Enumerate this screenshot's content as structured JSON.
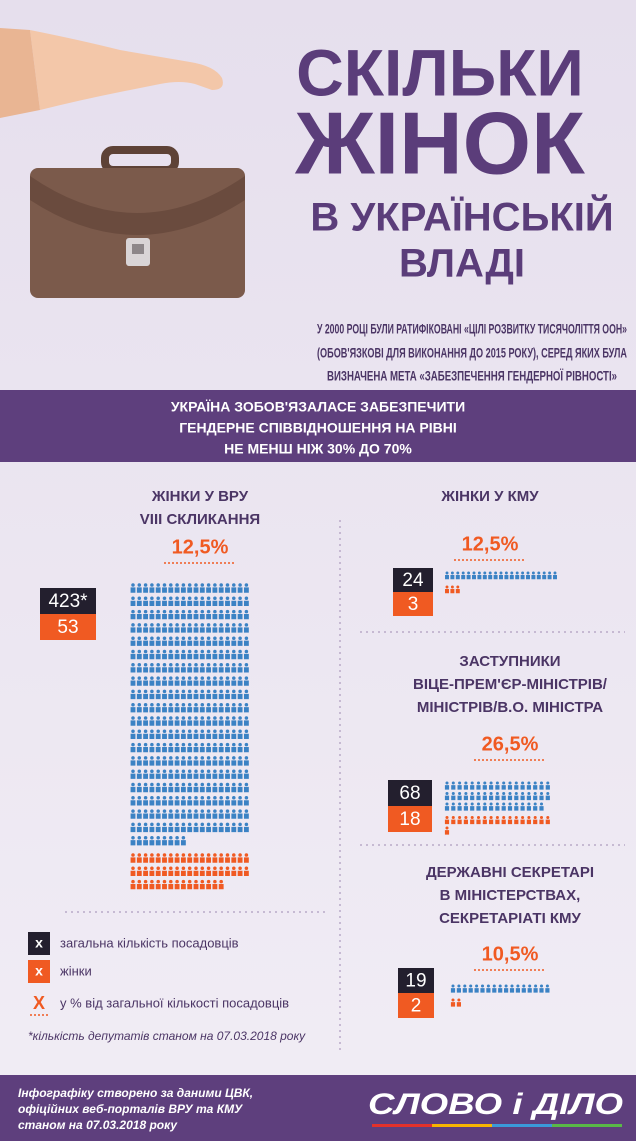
{
  "header": {
    "title_lines": [
      "СКІЛЬКИ",
      "ЖІНОК",
      "В УКРАЇНСЬКІЙ",
      "ВЛАДІ"
    ],
    "intro_lines": [
      "У 2000 РОЦІ БУЛИ РАТИФІКОВАНІ «ЦІЛІ РОЗВИТКУ ТИСЯЧОЛІТТЯ ООН»",
      "(ОБОВ'ЯЗКОВІ ДЛЯ ВИКОНАННЯ ДО 2015 РОКУ), СЕРЕД ЯКИХ БУЛА",
      "ВИЗНАЧЕНА МЕТА «ЗАБЕЗПЕЧЕННЯ ГЕНДЕРНОЇ РІВНОСТІ»"
    ]
  },
  "banner": {
    "lines": [
      "УКРАЇНА ЗОБОВ'ЯЗАЛАСЕ ЗАБЕЗПЕЧИТИ",
      "ГЕНДЕРНЕ СПІВВІДНОШЕННЯ НА РІВНІ",
      "НЕ МЕНШ НІЖ 30% ДО 70%"
    ]
  },
  "sections": [
    {
      "title_lines": [
        "ЖІНКИ У ВРУ",
        "VIII СКЛИКАННЯ"
      ],
      "percent": "12,5%",
      "total": {
        "value": 423,
        "label": "423*"
      },
      "women": 53
    },
    {
      "title_lines": [
        "ЖІНКИ У КМУ"
      ],
      "percent": "12,5%",
      "total": 24,
      "women": 3
    },
    {
      "title_lines": [
        "ЗАСТУПНИКИ",
        "ВІЦЕ-ПРЕМ'ЄР-МІНІСТРІВ/",
        "МІНІСТРІВ/В.О. МІНІСТРА"
      ],
      "percent": "26,5%",
      "total": 68,
      "women": 18
    },
    {
      "title_lines": [
        "ДЕРЖАВНІ СЕКРЕТАРІ",
        "В МІНІСТЕРСТВАХ,",
        "СЕКРЕТАРІАТІ КМУ"
      ],
      "percent": "10,5%",
      "total": 19,
      "women": 2
    }
  ],
  "legend": {
    "items": [
      {
        "symbol": "x",
        "text": "загальна кількість посадовців"
      },
      {
        "symbol": "x",
        "text": "жінки"
      },
      {
        "symbol": "X",
        "text": "у % від загальної кількості посадовців"
      }
    ],
    "note": "*кількість депутатів станом на 07.03.2018 року"
  },
  "footer": {
    "lines": [
      "Інфографіку створено за даними ЦВК,",
      "офіційних веб-порталів ВРУ та КМУ",
      "станом на 07.03.2018 року"
    ],
    "logo": "СЛОВО і ДІЛО"
  }
}
